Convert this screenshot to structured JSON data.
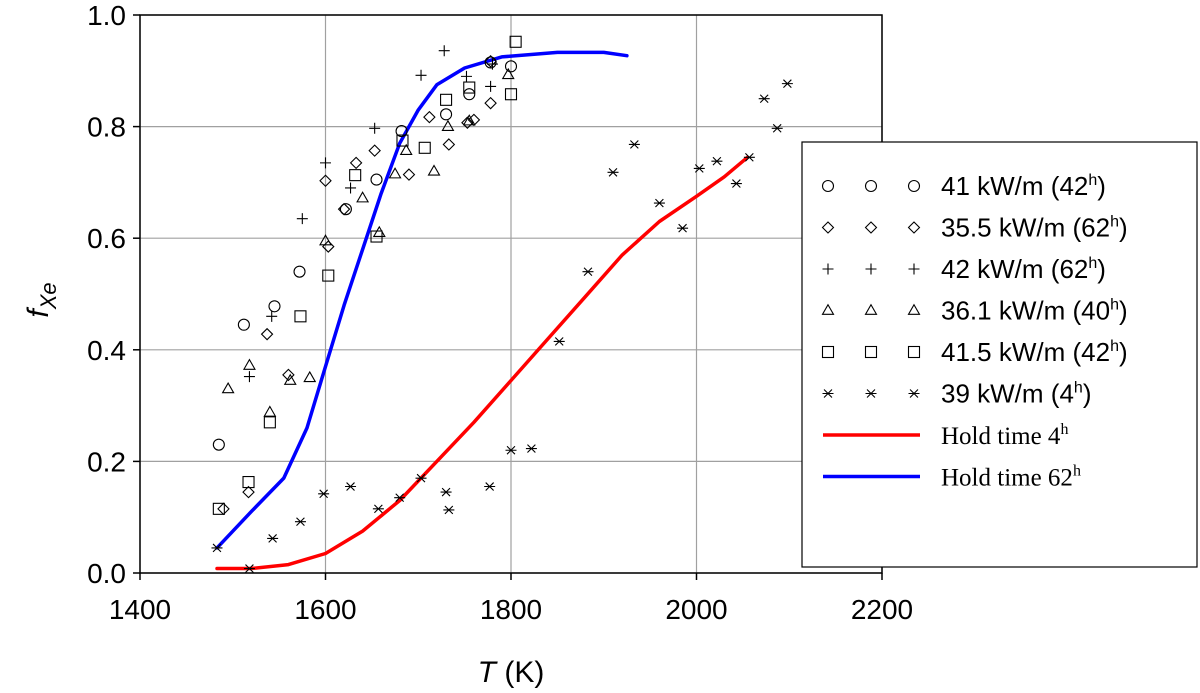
{
  "chart_data": {
    "type": "scatter",
    "title": "",
    "xlabel": "T",
    "xlabel_unit": " (K)",
    "ylabel_main": "f",
    "ylabel_sub": "Xe",
    "xlim": [
      1400,
      2200
    ],
    "ylim": [
      0.0,
      1.0
    ],
    "xticks": [
      1400,
      1600,
      1800,
      2000,
      2200
    ],
    "xtick_labels": [
      "1400",
      "1600",
      "1800",
      "2000",
      "2200"
    ],
    "yticks": [
      0.0,
      0.2,
      0.4,
      0.6,
      0.8,
      1.0
    ],
    "ytick_labels": [
      "0.0",
      "0.2",
      "0.4",
      "0.6",
      "0.8",
      "1.0"
    ],
    "grid": true,
    "legend_position": "right",
    "series": [
      {
        "name": "41 kW/m (42",
        "hold_mark": "h",
        "name_tail": ")",
        "marker": "circle",
        "points": [
          [
            1485,
            0.23
          ],
          [
            1512,
            0.445
          ],
          [
            1545,
            0.478
          ],
          [
            1572,
            0.54
          ],
          [
            1622,
            0.652
          ],
          [
            1655,
            0.705
          ],
          [
            1682,
            0.792
          ],
          [
            1730,
            0.822
          ],
          [
            1755,
            0.858
          ],
          [
            1778,
            0.915
          ],
          [
            1800,
            0.908
          ]
        ]
      },
      {
        "name": "35.5 kW/m (62",
        "hold_mark": "h",
        "name_tail": ")",
        "marker": "diamond",
        "points": [
          [
            1490,
            0.115
          ],
          [
            1517,
            0.145
          ],
          [
            1537,
            0.428
          ],
          [
            1560,
            0.355
          ],
          [
            1600,
            0.703
          ],
          [
            1603,
            0.585
          ],
          [
            1620,
            0.652
          ],
          [
            1633,
            0.735
          ],
          [
            1653,
            0.757
          ],
          [
            1690,
            0.714
          ],
          [
            1712,
            0.817
          ],
          [
            1733,
            0.768
          ],
          [
            1753,
            0.807
          ],
          [
            1760,
            0.812
          ],
          [
            1778,
            0.842
          ],
          [
            1778,
            0.917
          ]
        ]
      },
      {
        "name": "42 kW/m (62",
        "hold_mark": "h",
        "name_tail": ")",
        "marker": "plus",
        "points": [
          [
            1518,
            0.352
          ],
          [
            1542,
            0.46
          ],
          [
            1575,
            0.635
          ],
          [
            1600,
            0.735
          ],
          [
            1627,
            0.69
          ],
          [
            1653,
            0.797
          ],
          [
            1703,
            0.892
          ],
          [
            1728,
            0.936
          ],
          [
            1752,
            0.89
          ],
          [
            1778,
            0.872
          ],
          [
            1780,
            0.912
          ]
        ]
      },
      {
        "name": "36.1 kW/m (40",
        "hold_mark": "h",
        "name_tail": ")",
        "marker": "triangle",
        "points": [
          [
            1495,
            0.33
          ],
          [
            1518,
            0.372
          ],
          [
            1540,
            0.288
          ],
          [
            1562,
            0.345
          ],
          [
            1583,
            0.35
          ],
          [
            1600,
            0.595
          ],
          [
            1640,
            0.672
          ],
          [
            1658,
            0.61
          ],
          [
            1675,
            0.715
          ],
          [
            1687,
            0.757
          ],
          [
            1717,
            0.72
          ],
          [
            1732,
            0.8
          ],
          [
            1755,
            0.81
          ],
          [
            1797,
            0.893
          ]
        ]
      },
      {
        "name": "41.5 kW/m (42",
        "hold_mark": "h",
        "name_tail": ")",
        "marker": "square",
        "points": [
          [
            1485,
            0.115
          ],
          [
            1517,
            0.163
          ],
          [
            1540,
            0.27
          ],
          [
            1573,
            0.46
          ],
          [
            1603,
            0.533
          ],
          [
            1632,
            0.713
          ],
          [
            1655,
            0.603
          ],
          [
            1683,
            0.775
          ],
          [
            1707,
            0.762
          ],
          [
            1730,
            0.848
          ],
          [
            1755,
            0.87
          ],
          [
            1800,
            0.858
          ],
          [
            1805,
            0.952
          ]
        ]
      },
      {
        "name": "39 kW/m (4",
        "hold_mark": "h",
        "name_tail": ")",
        "marker": "asterisk",
        "points": [
          [
            1483,
            0.045
          ],
          [
            1518,
            0.008
          ],
          [
            1543,
            0.062
          ],
          [
            1573,
            0.092
          ],
          [
            1598,
            0.142
          ],
          [
            1627,
            0.155
          ],
          [
            1657,
            0.115
          ],
          [
            1680,
            0.135
          ],
          [
            1703,
            0.17
          ],
          [
            1730,
            0.145
          ],
          [
            1733,
            0.113
          ],
          [
            1777,
            0.155
          ],
          [
            1800,
            0.22
          ],
          [
            1822,
            0.223
          ],
          [
            1852,
            0.415
          ],
          [
            1883,
            0.54
          ],
          [
            1910,
            0.718
          ],
          [
            1933,
            0.768
          ],
          [
            1960,
            0.663
          ],
          [
            1985,
            0.618
          ],
          [
            2003,
            0.725
          ],
          [
            2022,
            0.738
          ],
          [
            2043,
            0.698
          ],
          [
            2057,
            0.745
          ],
          [
            2073,
            0.85
          ],
          [
            2087,
            0.797
          ],
          [
            2098,
            0.877
          ]
        ]
      }
    ],
    "lines": [
      {
        "name": "Hold time 4",
        "hold_mark": "h",
        "color": "#ff0000",
        "points": [
          [
            1483,
            0.008
          ],
          [
            1520,
            0.008
          ],
          [
            1560,
            0.015
          ],
          [
            1600,
            0.035
          ],
          [
            1640,
            0.075
          ],
          [
            1680,
            0.13
          ],
          [
            1720,
            0.2
          ],
          [
            1760,
            0.27
          ],
          [
            1800,
            0.345
          ],
          [
            1840,
            0.42
          ],
          [
            1880,
            0.495
          ],
          [
            1920,
            0.57
          ],
          [
            1960,
            0.63
          ],
          [
            2000,
            0.675
          ],
          [
            2030,
            0.71
          ],
          [
            2055,
            0.745
          ]
        ]
      },
      {
        "name": "Hold time 62",
        "hold_mark": "h",
        "color": "#0000ff",
        "points": [
          [
            1483,
            0.045
          ],
          [
            1520,
            0.11
          ],
          [
            1555,
            0.17
          ],
          [
            1580,
            0.26
          ],
          [
            1600,
            0.37
          ],
          [
            1620,
            0.48
          ],
          [
            1640,
            0.58
          ],
          [
            1660,
            0.68
          ],
          [
            1680,
            0.77
          ],
          [
            1700,
            0.83
          ],
          [
            1720,
            0.875
          ],
          [
            1750,
            0.905
          ],
          [
            1790,
            0.925
          ],
          [
            1850,
            0.933
          ],
          [
            1900,
            0.933
          ],
          [
            1925,
            0.927
          ]
        ]
      }
    ]
  }
}
